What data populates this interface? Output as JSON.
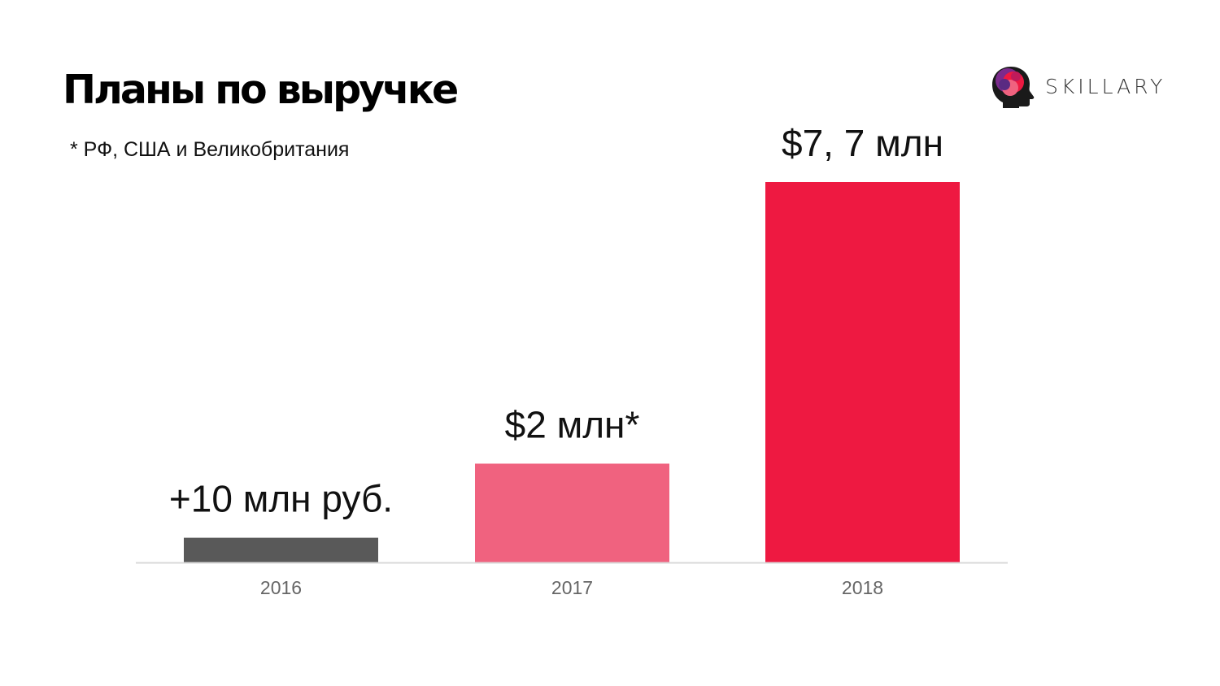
{
  "slide": {
    "title": "Планы по выручке",
    "footnote": "* РФ, США и Великобритания"
  },
  "logo": {
    "text": "SKILLARY",
    "icon": "head-profile-icon"
  },
  "colors": {
    "bar_2016": "#595959",
    "bar_2017": "#f0627f",
    "bar_2018": "#ee1941",
    "axis": "#d9d9d9"
  },
  "chart_data": {
    "type": "bar",
    "title": "Планы по выручке",
    "categories": [
      "2016",
      "2017",
      "2018"
    ],
    "values": [
      0.5,
      2.0,
      7.7
    ],
    "data_labels": [
      "+10 млн руб.",
      "$2 млн*",
      "$7, 7 млн"
    ],
    "ylim": [
      0,
      7.7
    ],
    "grid": false,
    "legend": "none"
  }
}
